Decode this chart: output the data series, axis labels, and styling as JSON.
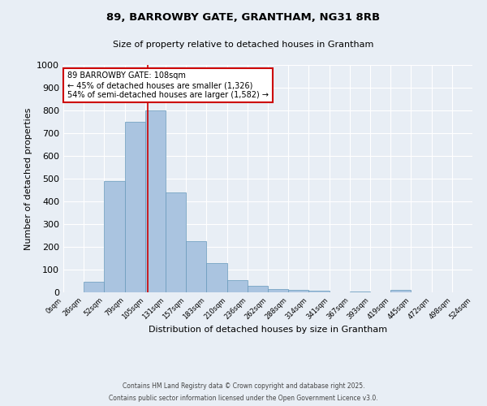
{
  "title_line1": "89, BARROWBY GATE, GRANTHAM, NG31 8RB",
  "title_line2": "Size of property relative to detached houses in Grantham",
  "bin_edges": [
    0,
    26,
    52,
    79,
    105,
    131,
    157,
    183,
    210,
    236,
    262,
    288,
    314,
    341,
    367,
    393,
    419,
    445,
    472,
    498,
    524
  ],
  "bar_heights": [
    0,
    45,
    490,
    750,
    800,
    440,
    225,
    128,
    52,
    30,
    15,
    10,
    7,
    0,
    5,
    0,
    10,
    0,
    0,
    0
  ],
  "bar_color": "#aac4e0",
  "bar_edge_color": "#6699bb",
  "property_line_x": 108,
  "property_line_color": "#cc0000",
  "annotation_text": "89 BARROWBY GATE: 108sqm\n← 45% of detached houses are smaller (1,326)\n54% of semi-detached houses are larger (1,582) →",
  "annotation_box_color": "#ffffff",
  "annotation_box_edge": "#cc0000",
  "xlabel": "Distribution of detached houses by size in Grantham",
  "ylabel": "Number of detached properties",
  "ylim": [
    0,
    1000
  ],
  "yticks": [
    0,
    100,
    200,
    300,
    400,
    500,
    600,
    700,
    800,
    900,
    1000
  ],
  "background_color": "#e8eef5",
  "grid_color": "#ffffff",
  "footer_line1": "Contains HM Land Registry data © Crown copyright and database right 2025.",
  "footer_line2": "Contains public sector information licensed under the Open Government Licence v3.0."
}
